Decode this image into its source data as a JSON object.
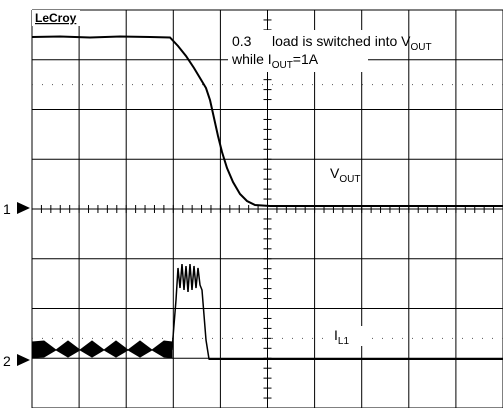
{
  "logo": "LeCroy",
  "annotation": {
    "value": "0.3",
    "text": "load  is switched into V",
    "sub1": "OUT",
    "line2": "while I",
    "sub2": "OUT",
    "tail": "=1A"
  },
  "traces": [
    {
      "label": "V",
      "sub": "OUT"
    },
    {
      "label": "I",
      "sub": "L1"
    }
  ],
  "markers": [
    "1",
    "2"
  ]
}
